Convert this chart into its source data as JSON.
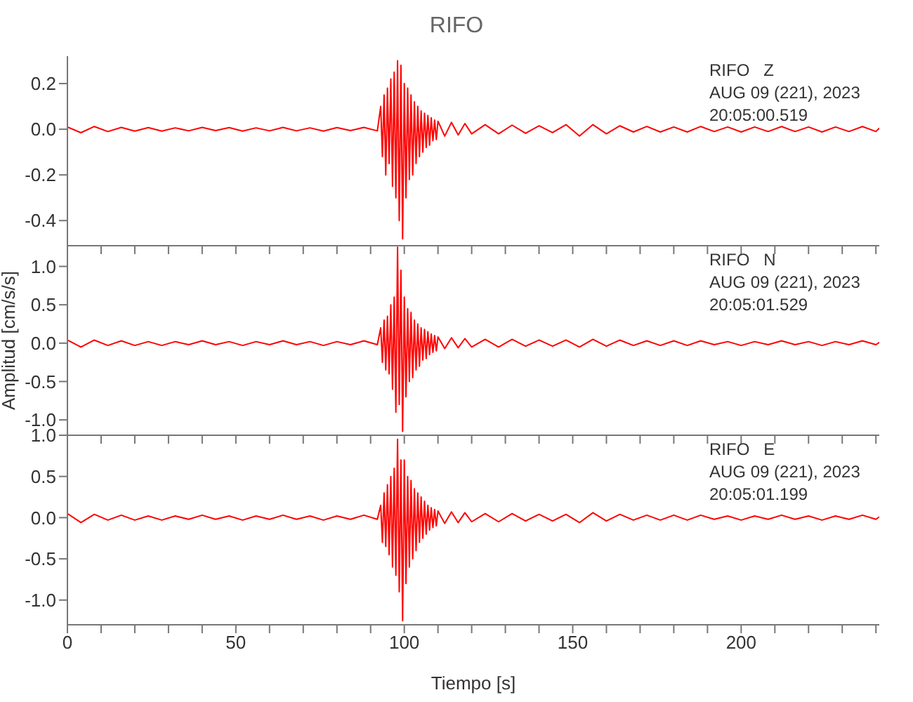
{
  "chart_data": [
    {
      "type": "line",
      "title": "RIFO",
      "annotations": [
        "RIFO   Z",
        "AUG 09 (221), 2023",
        "20:05:00.519"
      ],
      "tick_labels": "y",
      "x": [
        0,
        4,
        8,
        12,
        16,
        20,
        24,
        28,
        32,
        36,
        40,
        44,
        48,
        52,
        56,
        60,
        64,
        68,
        72,
        76,
        80,
        84,
        88,
        92,
        93,
        93.5,
        94,
        94.5,
        95,
        95.5,
        96,
        96.5,
        97,
        97.5,
        98,
        98.5,
        99,
        99.5,
        100,
        100.5,
        101,
        101.5,
        102,
        102.5,
        103,
        103.5,
        104,
        104.5,
        105,
        105.5,
        106,
        106.5,
        107,
        107.5,
        108,
        108.5,
        109,
        109.5,
        110,
        112,
        114,
        116,
        118,
        120,
        124,
        128,
        132,
        136,
        140,
        144,
        148,
        152,
        156,
        160,
        164,
        168,
        172,
        176,
        180,
        184,
        188,
        192,
        196,
        200,
        204,
        208,
        212,
        216,
        220,
        224,
        228,
        232,
        236,
        240,
        241
      ],
      "series": [
        {
          "color": "#ff0000",
          "values": [
            0.01,
            -0.015,
            0.012,
            -0.01,
            0.008,
            -0.008,
            0.007,
            -0.008,
            0.006,
            -0.007,
            0.008,
            -0.006,
            0.007,
            -0.008,
            0.006,
            -0.007,
            0.008,
            -0.007,
            0.006,
            -0.008,
            0.007,
            -0.006,
            0.008,
            -0.007,
            0.1,
            -0.12,
            0.15,
            -0.2,
            0.18,
            -0.15,
            0.22,
            -0.25,
            0.25,
            -0.3,
            0.3,
            -0.4,
            0.28,
            -0.48,
            0.2,
            -0.3,
            0.18,
            -0.22,
            0.15,
            -0.2,
            0.12,
            -0.15,
            0.1,
            -0.12,
            0.08,
            -0.1,
            0.07,
            -0.08,
            0.06,
            -0.07,
            0.05,
            -0.05,
            0.04,
            -0.045,
            0.035,
            -0.03,
            0.03,
            -0.025,
            0.025,
            -0.02,
            0.02,
            -0.02,
            0.018,
            -0.018,
            0.015,
            -0.015,
            0.02,
            -0.03,
            0.02,
            -0.02,
            0.015,
            -0.012,
            0.012,
            -0.012,
            0.01,
            -0.012,
            0.012,
            -0.01,
            0.01,
            -0.012,
            0.01,
            -0.01,
            0.012,
            -0.01,
            0.01,
            -0.012,
            0.01,
            -0.01,
            0.012,
            -0.01,
            0.005
          ]
        }
      ],
      "xlim": [
        0,
        241
      ],
      "xticks": [
        0,
        {
          "value": 10,
          "label": null
        },
        {
          "value": 20,
          "label": null
        },
        {
          "value": 30,
          "label": null
        },
        {
          "value": 40,
          "label": null
        },
        50,
        {
          "value": 60,
          "label": null
        },
        {
          "value": 70,
          "label": null
        },
        {
          "value": 80,
          "label": null
        },
        {
          "value": 90,
          "label": null
        },
        100,
        {
          "value": 110,
          "label": null
        },
        {
          "value": 120,
          "label": null
        },
        {
          "value": 130,
          "label": null
        },
        {
          "value": 140,
          "label": null
        },
        150,
        {
          "value": 160,
          "label": null
        },
        {
          "value": 170,
          "label": null
        },
        {
          "value": 180,
          "label": null
        },
        {
          "value": 190,
          "label": null
        },
        200,
        {
          "value": 210,
          "label": null
        },
        {
          "value": 220,
          "label": null
        },
        {
          "value": 230,
          "label": null
        },
        {
          "value": 240,
          "label": null
        }
      ],
      "ylim": [
        -0.51,
        0.32
      ],
      "yticks": [
        0.2,
        {
          "value": 0,
          "label": "0.0"
        },
        -0.2,
        -0.4
      ]
    },
    {
      "type": "line",
      "ylabel": "Amplitud [cm/s/s]",
      "annotations": [
        "RIFO   N",
        "AUG 09 (221), 2023",
        "20:05:01.529"
      ],
      "tick_labels": "y",
      "x": [
        0,
        4,
        8,
        12,
        16,
        20,
        24,
        28,
        32,
        36,
        40,
        44,
        48,
        52,
        56,
        60,
        64,
        68,
        72,
        76,
        80,
        84,
        88,
        92,
        93,
        93.5,
        94,
        94.5,
        95,
        95.5,
        96,
        96.5,
        97,
        97.5,
        98,
        98.5,
        99,
        99.5,
        100,
        100.5,
        101,
        101.5,
        102,
        102.5,
        103,
        103.5,
        104,
        104.5,
        105,
        105.5,
        106,
        106.5,
        107,
        107.5,
        108,
        108.5,
        109,
        109.5,
        110,
        112,
        114,
        116,
        118,
        120,
        124,
        128,
        132,
        136,
        140,
        144,
        148,
        152,
        156,
        160,
        164,
        168,
        172,
        176,
        180,
        184,
        188,
        192,
        196,
        200,
        204,
        208,
        212,
        216,
        220,
        224,
        228,
        232,
        236,
        240,
        241
      ],
      "series": [
        {
          "color": "#ff0000",
          "values": [
            0.04,
            -0.05,
            0.04,
            -0.03,
            0.03,
            -0.03,
            0.02,
            -0.03,
            0.02,
            -0.02,
            0.03,
            -0.02,
            0.02,
            -0.03,
            0.02,
            -0.02,
            0.03,
            -0.02,
            0.02,
            -0.03,
            0.02,
            -0.02,
            0.03,
            -0.02,
            0.2,
            -0.25,
            0.3,
            -0.35,
            0.35,
            -0.4,
            0.5,
            -0.6,
            0.6,
            -0.9,
            1.25,
            -0.8,
            0.95,
            -1.15,
            0.6,
            -0.7,
            0.45,
            -0.5,
            0.4,
            -0.45,
            0.3,
            -0.35,
            0.25,
            -0.3,
            0.2,
            -0.22,
            0.18,
            -0.2,
            0.15,
            -0.15,
            0.12,
            -0.12,
            0.1,
            -0.1,
            0.08,
            -0.07,
            0.07,
            -0.06,
            0.06,
            -0.05,
            0.05,
            -0.05,
            0.05,
            -0.04,
            0.04,
            -0.04,
            0.04,
            -0.05,
            0.05,
            -0.04,
            0.04,
            -0.03,
            0.03,
            -0.03,
            0.03,
            -0.03,
            0.03,
            -0.02,
            0.02,
            -0.03,
            0.02,
            -0.02,
            0.03,
            -0.02,
            0.02,
            -0.03,
            0.02,
            -0.02,
            0.03,
            -0.02,
            0.01
          ]
        }
      ],
      "xlim": [
        0,
        241
      ],
      "xticks": [
        0,
        {
          "value": 10,
          "label": null
        },
        {
          "value": 20,
          "label": null
        },
        {
          "value": 30,
          "label": null
        },
        {
          "value": 40,
          "label": null
        },
        50,
        {
          "value": 60,
          "label": null
        },
        {
          "value": 70,
          "label": null
        },
        {
          "value": 80,
          "label": null
        },
        {
          "value": 90,
          "label": null
        },
        100,
        {
          "value": 110,
          "label": null
        },
        {
          "value": 120,
          "label": null
        },
        {
          "value": 130,
          "label": null
        },
        {
          "value": 140,
          "label": null
        },
        150,
        {
          "value": 160,
          "label": null
        },
        {
          "value": 170,
          "label": null
        },
        {
          "value": 180,
          "label": null
        },
        {
          "value": 190,
          "label": null
        },
        200,
        {
          "value": 210,
          "label": null
        },
        {
          "value": 220,
          "label": null
        },
        {
          "value": 230,
          "label": null
        },
        {
          "value": 240,
          "label": null
        }
      ],
      "ylim": [
        -1.2,
        1.27
      ],
      "yticks": [
        {
          "value": 1,
          "label": "1.0"
        },
        0.5,
        {
          "value": 0,
          "label": "0.0"
        },
        -0.5,
        {
          "value": -1,
          "label": "-1.0"
        }
      ]
    },
    {
      "type": "line",
      "xlabel": "Tiempo [s]",
      "annotations": [
        "RIFO   E",
        "AUG 09 (221), 2023",
        "20:05:01.199"
      ],
      "x": [
        0,
        4,
        8,
        12,
        16,
        20,
        24,
        28,
        32,
        36,
        40,
        44,
        48,
        52,
        56,
        60,
        64,
        68,
        72,
        76,
        80,
        84,
        88,
        92,
        93,
        93.5,
        94,
        94.5,
        95,
        95.5,
        96,
        96.5,
        97,
        97.5,
        98,
        98.5,
        99,
        99.5,
        100,
        100.5,
        101,
        101.5,
        102,
        102.5,
        103,
        103.5,
        104,
        104.5,
        105,
        105.5,
        106,
        106.5,
        107,
        107.5,
        108,
        108.5,
        109,
        109.5,
        110,
        112,
        114,
        116,
        118,
        120,
        124,
        128,
        132,
        136,
        140,
        144,
        148,
        152,
        156,
        160,
        164,
        168,
        172,
        176,
        180,
        184,
        188,
        192,
        196,
        200,
        204,
        208,
        212,
        216,
        220,
        224,
        228,
        232,
        236,
        240,
        241
      ],
      "series": [
        {
          "color": "#ff0000",
          "values": [
            0.05,
            -0.06,
            0.04,
            -0.03,
            0.03,
            -0.03,
            0.02,
            -0.03,
            0.02,
            -0.02,
            0.03,
            -0.02,
            0.02,
            -0.03,
            0.02,
            -0.02,
            0.03,
            -0.02,
            0.02,
            -0.03,
            0.02,
            -0.02,
            0.03,
            -0.02,
            0.15,
            -0.3,
            0.3,
            -0.35,
            0.4,
            -0.45,
            0.5,
            -0.6,
            0.6,
            -0.7,
            0.95,
            -0.9,
            0.7,
            -1.25,
            0.7,
            -0.8,
            0.5,
            -0.6,
            0.45,
            -0.5,
            0.35,
            -0.4,
            0.3,
            -0.3,
            0.25,
            -0.25,
            0.2,
            -0.2,
            0.15,
            -0.15,
            0.12,
            -0.12,
            0.1,
            -0.1,
            0.08,
            -0.07,
            0.07,
            -0.06,
            0.06,
            -0.05,
            0.05,
            -0.05,
            0.05,
            -0.04,
            0.04,
            -0.04,
            0.04,
            -0.06,
            0.06,
            -0.04,
            0.04,
            -0.03,
            0.03,
            -0.03,
            0.03,
            -0.03,
            0.03,
            -0.02,
            0.02,
            -0.03,
            0.02,
            -0.02,
            0.03,
            -0.02,
            0.02,
            -0.03,
            0.02,
            -0.02,
            0.03,
            -0.02,
            0.01
          ]
        }
      ],
      "xlim": [
        0,
        241
      ],
      "xticks": [
        0,
        {
          "value": 10,
          "label": null
        },
        {
          "value": 20,
          "label": null
        },
        {
          "value": 30,
          "label": null
        },
        {
          "value": 40,
          "label": null
        },
        50,
        {
          "value": 60,
          "label": null
        },
        {
          "value": 70,
          "label": null
        },
        {
          "value": 80,
          "label": null
        },
        {
          "value": 90,
          "label": null
        },
        100,
        {
          "value": 110,
          "label": null
        },
        {
          "value": 120,
          "label": null
        },
        {
          "value": 130,
          "label": null
        },
        {
          "value": 140,
          "label": null
        },
        150,
        {
          "value": 160,
          "label": null
        },
        {
          "value": 170,
          "label": null
        },
        {
          "value": 180,
          "label": null
        },
        {
          "value": 190,
          "label": null
        },
        200,
        {
          "value": 210,
          "label": null
        },
        {
          "value": 220,
          "label": null
        },
        {
          "value": 230,
          "label": null
        },
        {
          "value": 240,
          "label": null
        }
      ],
      "ylim": [
        -1.3,
        1.0
      ],
      "yticks": [
        {
          "value": 1,
          "label": "1.0"
        },
        0.5,
        {
          "value": 0,
          "label": "0.0"
        },
        -0.5,
        {
          "value": -1,
          "label": "-1.0"
        }
      ]
    }
  ]
}
